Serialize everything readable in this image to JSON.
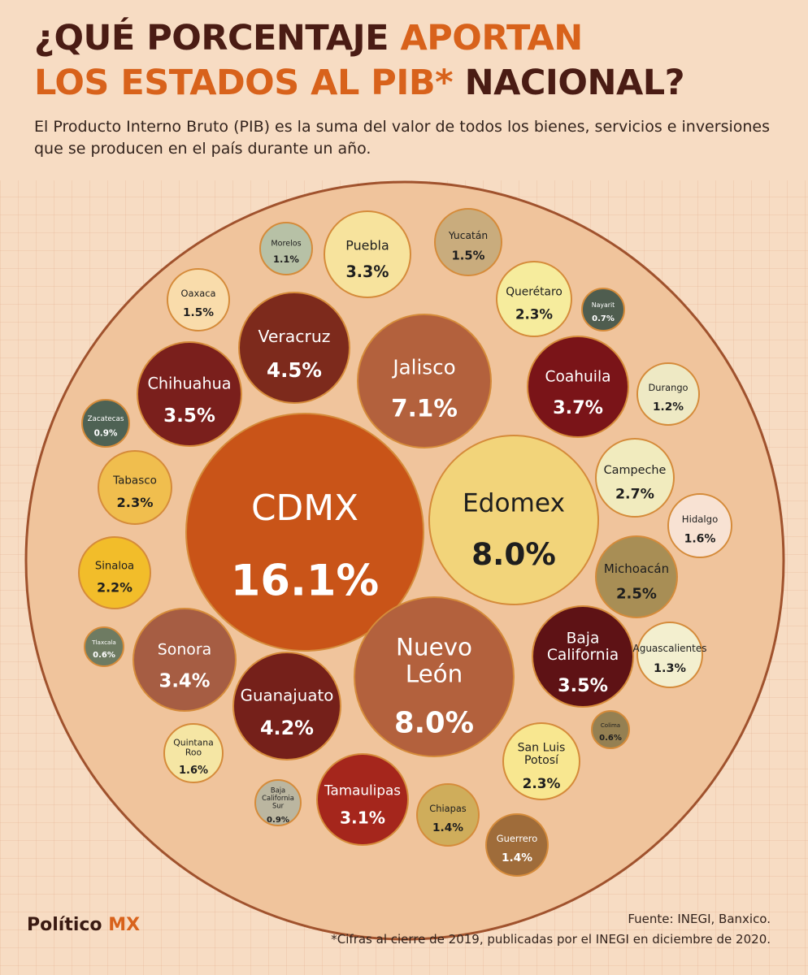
{
  "header": {
    "title_line1_a": "¿QUÉ PORCENTAJE",
    "title_line1_b": "APORTAN",
    "title_line2_a": "LOS ESTADOS AL PIB*",
    "title_line2_b": "NACIONAL?",
    "subtitle": "El Producto Interno Bruto (PIB) es la suma del valor de todos los bienes, servicios e inversiones que se producen en el país durante un año."
  },
  "footer": {
    "brand_a": "Político",
    "brand_b": "MX",
    "source": "Fuente: INEGI, Banxico.",
    "footnote": "*Cifras al cierre de 2019, publicadas por el INEGI en diciembre de 2020."
  },
  "colors": {
    "background": "#f7dcc3",
    "outer_circle": "#f0c49c",
    "outer_border": "#a0522d",
    "accent": "#d8621b",
    "title_dark": "#4a1c14"
  },
  "chart_data": {
    "type": "bubble",
    "unit": "%",
    "series": [
      {
        "label": "CDMX",
        "label_lines": [
          "CDMX"
        ],
        "value": 16.1,
        "display": "16.1%",
        "color": "#c95418",
        "text_color": "#ffffff"
      },
      {
        "label": "Edomex",
        "label_lines": [
          "Edomex"
        ],
        "value": 8.0,
        "display": "8.0%",
        "color": "#f2d47a",
        "text_color": "#1e1e1e"
      },
      {
        "label": "Nuevo León",
        "label_lines": [
          "Nuevo",
          "León"
        ],
        "value": 8.0,
        "display": "8.0%",
        "color": "#b3613d",
        "text_color": "#ffffff"
      },
      {
        "label": "Jalisco",
        "label_lines": [
          "Jalisco"
        ],
        "value": 7.1,
        "display": "7.1%",
        "color": "#b3613d",
        "text_color": "#ffffff"
      },
      {
        "label": "Veracruz",
        "label_lines": [
          "Veracruz"
        ],
        "value": 4.5,
        "display": "4.5%",
        "color": "#7d2a1c",
        "text_color": "#ffffff"
      },
      {
        "label": "Guanajuato",
        "label_lines": [
          "Guanajuato"
        ],
        "value": 4.2,
        "display": "4.2%",
        "color": "#75201a",
        "text_color": "#ffffff"
      },
      {
        "label": "Coahuila",
        "label_lines": [
          "Coahuila"
        ],
        "value": 3.7,
        "display": "3.7%",
        "color": "#7a1418",
        "text_color": "#ffffff"
      },
      {
        "label": "Chihuahua",
        "label_lines": [
          "Chihuahua"
        ],
        "value": 3.5,
        "display": "3.5%",
        "color": "#7a1f1c",
        "text_color": "#ffffff"
      },
      {
        "label": "Baja California",
        "label_lines": [
          "Baja",
          "California"
        ],
        "value": 3.5,
        "display": "3.5%",
        "color": "#5e1215",
        "text_color": "#ffffff"
      },
      {
        "label": "Sonora",
        "label_lines": [
          "Sonora"
        ],
        "value": 3.4,
        "display": "3.4%",
        "color": "#a65d43",
        "text_color": "#ffffff"
      },
      {
        "label": "Puebla",
        "label_lines": [
          "Puebla"
        ],
        "value": 3.3,
        "display": "3.3%",
        "color": "#f7e39d",
        "text_color": "#1e1e1e"
      },
      {
        "label": "Tamaulipas",
        "label_lines": [
          "Tamaulipas"
        ],
        "value": 3.1,
        "display": "3.1%",
        "color": "#a5261c",
        "text_color": "#ffffff"
      },
      {
        "label": "Campeche",
        "label_lines": [
          "Campeche"
        ],
        "value": 2.7,
        "display": "2.7%",
        "color": "#f1ebbe",
        "text_color": "#1e1e1e"
      },
      {
        "label": "Michoacán",
        "label_lines": [
          "Michoacán"
        ],
        "value": 2.5,
        "display": "2.5%",
        "color": "#a88e55",
        "text_color": "#1e1e1e"
      },
      {
        "label": "Tabasco",
        "label_lines": [
          "Tabasco"
        ],
        "value": 2.3,
        "display": "2.3%",
        "color": "#f0be4e",
        "text_color": "#1e1e1e"
      },
      {
        "label": "Querétaro",
        "label_lines": [
          "Querétaro"
        ],
        "value": 2.3,
        "display": "2.3%",
        "color": "#f6ec9d",
        "text_color": "#1e1e1e"
      },
      {
        "label": "San Luis Potosí",
        "label_lines": [
          "San Luis",
          "Potosí"
        ],
        "value": 2.3,
        "display": "2.3%",
        "color": "#f8e790",
        "text_color": "#1e1e1e"
      },
      {
        "label": "Sinaloa",
        "label_lines": [
          "Sinaloa"
        ],
        "value": 2.2,
        "display": "2.2%",
        "color": "#f2bd2a",
        "text_color": "#1e1e1e"
      },
      {
        "label": "Hidalgo",
        "label_lines": [
          "Hidalgo"
        ],
        "value": 1.6,
        "display": "1.6%",
        "color": "#f8e2d3",
        "text_color": "#1e1e1e"
      },
      {
        "label": "Quintana Roo",
        "label_lines": [
          "Quintana",
          "Roo"
        ],
        "value": 1.6,
        "display": "1.6%",
        "color": "#f5e6a4",
        "text_color": "#1e1e1e"
      },
      {
        "label": "Oaxaca",
        "label_lines": [
          "Oaxaca"
        ],
        "value": 1.5,
        "display": "1.5%",
        "color": "#f9dcab",
        "text_color": "#1e1e1e"
      },
      {
        "label": "Yucatán",
        "label_lines": [
          "Yucatán"
        ],
        "value": 1.5,
        "display": "1.5%",
        "color": "#c9ac7d",
        "text_color": "#1e1e1e"
      },
      {
        "label": "Chiapas",
        "label_lines": [
          "Chiapas"
        ],
        "value": 1.4,
        "display": "1.4%",
        "color": "#cfad5b",
        "text_color": "#1e1e1e"
      },
      {
        "label": "Guerrero",
        "label_lines": [
          "Guerrero"
        ],
        "value": 1.4,
        "display": "1.4%",
        "color": "#9f6c3a",
        "text_color": "#ffffff"
      },
      {
        "label": "Aguascalientes",
        "label_lines": [
          "Aguascalientes"
        ],
        "value": 1.3,
        "display": "1.3%",
        "color": "#f3efcf",
        "text_color": "#1e1e1e"
      },
      {
        "label": "Durango",
        "label_lines": [
          "Durango"
        ],
        "value": 1.2,
        "display": "1.2%",
        "color": "#eee9c4",
        "text_color": "#1e1e1e"
      },
      {
        "label": "Morelos",
        "label_lines": [
          "Morelos"
        ],
        "value": 1.1,
        "display": "1.1%",
        "color": "#b7c1a6",
        "text_color": "#1e1e1e"
      },
      {
        "label": "Zacatecas",
        "label_lines": [
          "Zacatecas"
        ],
        "value": 0.9,
        "display": "0.9%",
        "color": "#4e6254",
        "text_color": "#ffffff"
      },
      {
        "label": "Baja California Sur",
        "label_lines": [
          "Baja",
          "California",
          "Sur"
        ],
        "value": 0.9,
        "display": "0.9%",
        "color": "#bbb6a0",
        "text_color": "#1e1e1e"
      },
      {
        "label": "Nayarit",
        "label_lines": [
          "Nayarit"
        ],
        "value": 0.7,
        "display": "0.7%",
        "color": "#4f5d4f",
        "text_color": "#ffffff"
      },
      {
        "label": "Tlaxcala",
        "label_lines": [
          "Tlaxcala"
        ],
        "value": 0.6,
        "display": "0.6%",
        "color": "#6e7b62",
        "text_color": "#ffffff"
      },
      {
        "label": "Colima",
        "label_lines": [
          "Colima"
        ],
        "value": 0.6,
        "display": "0.6%",
        "color": "#958052",
        "text_color": "#1e1e1e"
      }
    ]
  }
}
